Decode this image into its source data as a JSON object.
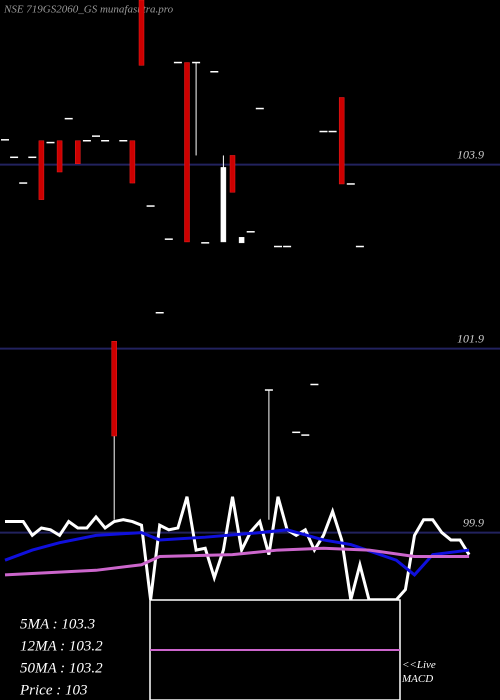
{
  "chart_data": {
    "type": "candlestick",
    "title": "NSE 719GS2060_GS munafasutra.pro",
    "ylim": [
      98.08,
      105.69
    ],
    "yticks": [
      103.9,
      101.9,
      99.9
    ],
    "grid": true,
    "rising_color": "#ffffff",
    "falling_color": "#cc0000",
    "candles": [
      {
        "open": 104.17,
        "high": 104.17,
        "low": 104.17,
        "close": 104.17
      },
      {
        "open": 103.98,
        "high": 103.98,
        "low": 103.98,
        "close": 103.98
      },
      {
        "open": 103.7,
        "high": 103.7,
        "low": 103.7,
        "close": 103.7
      },
      {
        "open": 103.98,
        "high": 103.98,
        "low": 103.98,
        "close": 103.98
      },
      {
        "open": 104.16,
        "high": 104.16,
        "low": 103.52,
        "close": 103.52
      },
      {
        "open": 104.14,
        "high": 104.14,
        "low": 104.14,
        "close": 104.14
      },
      {
        "open": 104.16,
        "high": 104.16,
        "low": 103.82,
        "close": 103.82
      },
      {
        "open": 104.4,
        "high": 104.4,
        "low": 104.4,
        "close": 104.4
      },
      {
        "open": 104.16,
        "high": 104.16,
        "low": 103.91,
        "close": 103.91
      },
      {
        "open": 104.16,
        "high": 104.16,
        "low": 104.16,
        "close": 104.16
      },
      {
        "open": 104.21,
        "high": 104.21,
        "low": 104.21,
        "close": 104.21
      },
      {
        "open": 104.16,
        "high": 104.16,
        "low": 104.16,
        "close": 104.16
      },
      {
        "open": 101.98,
        "high": 101.98,
        "low": 100.04,
        "close": 100.95
      },
      {
        "open": 104.16,
        "high": 104.16,
        "low": 104.16,
        "close": 104.16
      },
      {
        "open": 104.16,
        "high": 104.16,
        "low": 103.7,
        "close": 103.7
      },
      {
        "open": 105.69,
        "high": 105.69,
        "low": 104.98,
        "close": 104.98
      },
      {
        "open": 103.45,
        "high": 103.45,
        "low": 103.45,
        "close": 103.45
      },
      {
        "open": 102.29,
        "high": 102.29,
        "low": 102.29,
        "close": 102.29
      },
      {
        "open": 103.09,
        "high": 103.09,
        "low": 103.09,
        "close": 103.09
      },
      {
        "open": 105.01,
        "high": 105.01,
        "low": 105.01,
        "close": 105.01
      },
      {
        "open": 105.01,
        "high": 105.01,
        "low": 103.06,
        "close": 103.06
      },
      {
        "open": 105.01,
        "high": 105.01,
        "low": 104.0,
        "close": 105.01
      },
      {
        "open": 103.05,
        "high": 103.05,
        "low": 103.05,
        "close": 103.05
      },
      {
        "open": 104.91,
        "high": 104.91,
        "low": 104.91,
        "close": 104.91
      },
      {
        "open": 103.06,
        "high": 104.0,
        "low": 103.06,
        "close": 103.87
      },
      {
        "open": 104.0,
        "high": 104.0,
        "low": 103.6,
        "close": 103.6
      },
      {
        "open": 103.05,
        "high": 103.11,
        "low": 103.05,
        "close": 103.11
      },
      {
        "open": 103.17,
        "high": 103.17,
        "low": 103.17,
        "close": 103.17
      },
      {
        "open": 104.51,
        "high": 104.51,
        "low": 104.51,
        "close": 104.51
      },
      {
        "open": 101.45,
        "high": 101.45,
        "low": 100.04,
        "close": 101.45
      },
      {
        "open": 103.01,
        "high": 103.01,
        "low": 103.01,
        "close": 103.01
      },
      {
        "open": 103.01,
        "high": 103.01,
        "low": 103.01,
        "close": 103.01
      },
      {
        "open": 100.99,
        "high": 100.99,
        "low": 100.99,
        "close": 100.99
      },
      {
        "open": 100.96,
        "high": 100.96,
        "low": 100.96,
        "close": 100.96
      },
      {
        "open": 101.51,
        "high": 101.51,
        "low": 101.51,
        "close": 101.51
      },
      {
        "open": 104.26,
        "high": 104.26,
        "low": 104.26,
        "close": 104.26
      },
      {
        "open": 104.26,
        "high": 104.26,
        "low": 104.26,
        "close": 104.26
      },
      {
        "open": 104.63,
        "high": 104.63,
        "low": 103.69,
        "close": 103.69
      },
      {
        "open": 103.69,
        "high": 103.69,
        "low": 103.69,
        "close": 103.69
      },
      {
        "open": 103.01,
        "high": 103.01,
        "low": 103.01,
        "close": 103.01
      }
    ],
    "series": [
      {
        "color": "#ffffff",
        "x": [
          0,
          1,
          2,
          3,
          4,
          5,
          6,
          7,
          8,
          9,
          10,
          11,
          12,
          13,
          14,
          15,
          16,
          17,
          18,
          19,
          20,
          21,
          22,
          23,
          24,
          25,
          26,
          27,
          28,
          29,
          30,
          31,
          32,
          33,
          34,
          35,
          36,
          37,
          38,
          39,
          40,
          41,
          42,
          43,
          44,
          45,
          46,
          47,
          48,
          49,
          50,
          51
        ],
        "values": [
          100.02,
          100.02,
          100.02,
          99.87,
          99.95,
          99.93,
          99.87,
          100.02,
          99.95,
          99.95,
          100.07,
          99.95,
          100.02,
          100.04,
          100.02,
          99.98,
          99.17,
          99.98,
          99.93,
          99.95,
          100.29,
          99.71,
          99.73,
          99.41,
          99.71,
          100.29,
          99.71,
          99.91,
          100.02,
          99.66,
          100.29,
          99.93,
          99.87,
          99.93,
          99.71,
          99.87,
          100.13,
          99.82,
          99.17,
          99.55,
          99.17,
          99.17,
          99.17,
          99.17,
          99.28,
          99.87,
          100.04,
          100.04,
          99.9,
          99.82,
          99.82,
          99.66
        ]
      },
      {
        "color": "#1010dd",
        "x": [
          0,
          3,
          6,
          10,
          15,
          17,
          22,
          28,
          31,
          35,
          38,
          43,
          45,
          47,
          51
        ],
        "values": [
          99.6,
          99.71,
          99.79,
          99.87,
          99.9,
          99.82,
          99.85,
          99.9,
          99.93,
          99.82,
          99.77,
          99.6,
          99.44,
          99.66,
          99.71
        ]
      },
      {
        "color": "#cc66cc",
        "x": [
          0,
          10,
          15,
          17,
          25,
          30,
          35,
          40,
          45,
          51
        ],
        "values": [
          99.44,
          99.49,
          99.55,
          99.64,
          99.66,
          99.71,
          99.73,
          99.71,
          99.64,
          99.64
        ]
      }
    ],
    "stats": [
      "5MA : 103.3",
      "12MA : 103.2",
      "50MA : 103.2",
      "Price   : 103"
    ],
    "macd_label": "<<Live MACD"
  }
}
